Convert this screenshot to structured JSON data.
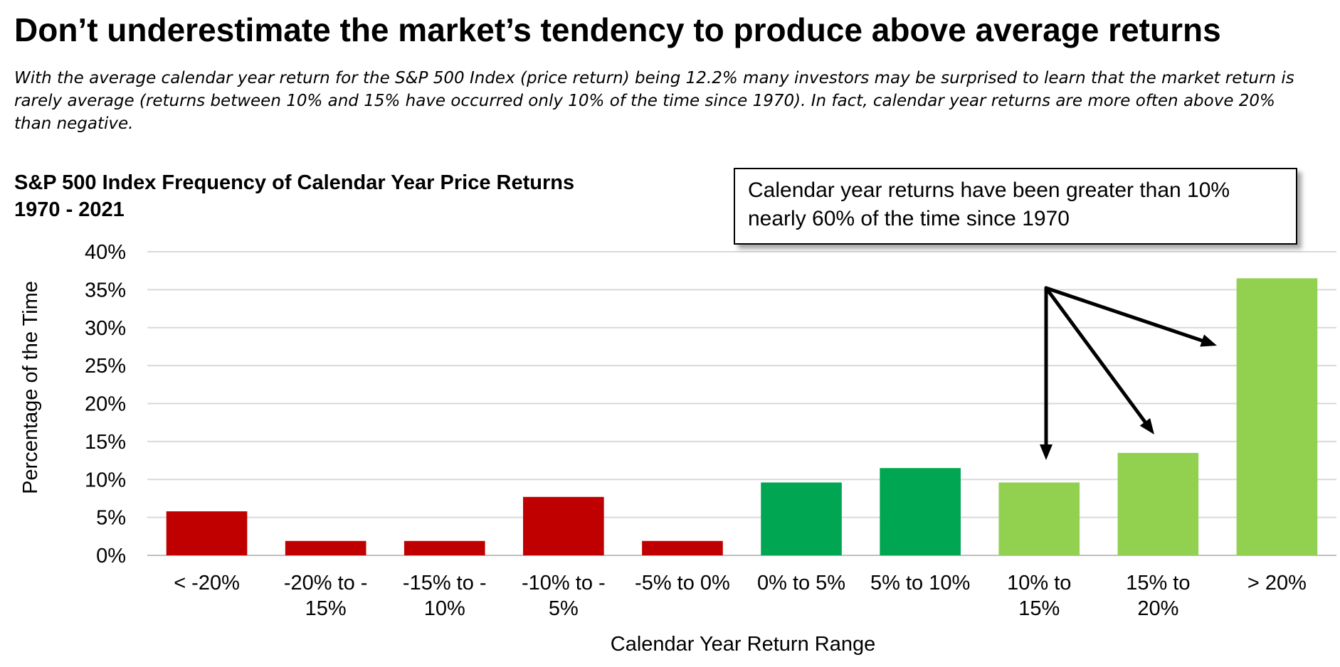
{
  "headline": "Don’t underestimate the market’s tendency to produce above average returns",
  "subtitle": "With the average calendar year return for the S&P 500 Index (price return) being 12.2% many investors may be surprised to learn that the market return is rarely average (returns between 10% and 15% have occurred only 10% of the time since 1970).  In fact, calendar year returns are more often above 20% than negative.",
  "callout": "Calendar year returns have been greater than 10% nearly 60% of the time since 1970",
  "colors": {
    "negative": "#c00000",
    "positive": "#00a651",
    "above_10": "#92d050",
    "grid": "#d9d9d9",
    "arrow": "#000000"
  },
  "chart_data": {
    "type": "bar",
    "title": "S&P 500 Index Frequency of Calendar Year Price Returns 1970 - 2021",
    "title_lines": [
      "S&P 500 Index Frequency of Calendar Year Price Returns",
      "1970 - 2021"
    ],
    "xlabel": "Calendar Year Return Range",
    "ylabel": "Percentage of the Time",
    "ylim": [
      0,
      40
    ],
    "yticks": [
      "0%",
      "5%",
      "10%",
      "15%",
      "20%",
      "25%",
      "30%",
      "35%",
      "40%"
    ],
    "grid": true,
    "legend": "none",
    "categories": [
      "< -20%",
      "-20% to -15%",
      "-15% to -10%",
      "-10% to -5%",
      "-5% to 0%",
      "0% to 5%",
      "5% to 10%",
      "10% to 15%",
      "15% to 20%",
      "> 20%"
    ],
    "category_lines": [
      [
        "< -20%"
      ],
      [
        "-20% to -",
        "15%"
      ],
      [
        "-15% to -",
        "10%"
      ],
      [
        "-10% to -",
        "5%"
      ],
      [
        "-5% to 0%"
      ],
      [
        "0% to 5%"
      ],
      [
        "5% to 10%"
      ],
      [
        "10% to",
        "15%"
      ],
      [
        "15% to",
        "20%"
      ],
      [
        "> 20%"
      ]
    ],
    "values": [
      5.8,
      1.9,
      1.9,
      7.7,
      1.9,
      9.6,
      11.5,
      9.6,
      13.5,
      36.5
    ],
    "bar_color_keys": [
      "negative",
      "negative",
      "negative",
      "negative",
      "negative",
      "positive",
      "positive",
      "above_10",
      "above_10",
      "above_10"
    ],
    "annotation_arrows_to": [
      "10% to 15%",
      "15% to 20%",
      "> 20%"
    ]
  }
}
